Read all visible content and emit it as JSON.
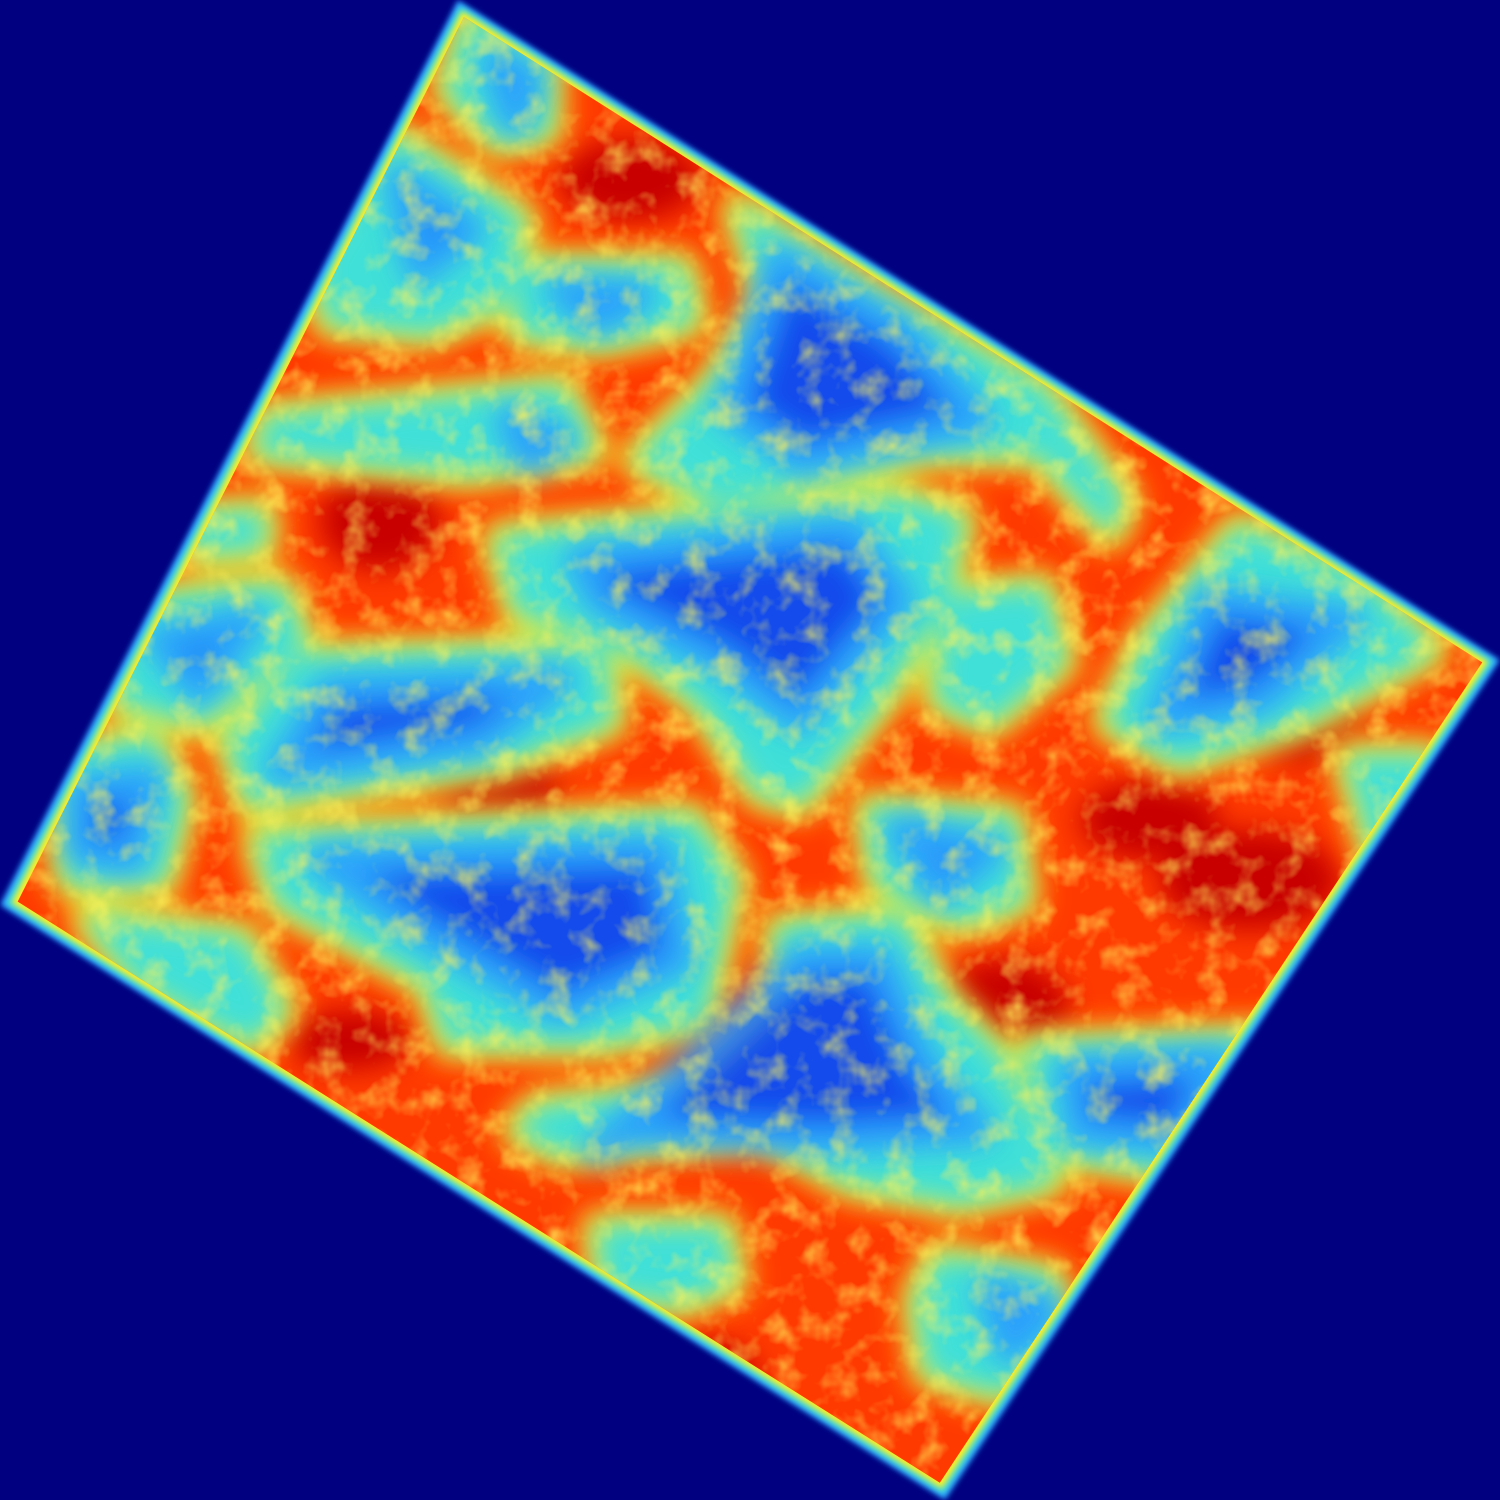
{
  "image": {
    "kind": "false-color heatmap of a rotated rectangular tile",
    "colormap": "jet",
    "background_color": "#000080",
    "palette": {
      "low": "#0a3cf0",
      "mid_low": "#2a9cff",
      "mid": "#3fe0d8",
      "mid_high": "#ffee22",
      "high": "#ff3a00",
      "peak": "#c80000"
    },
    "rotation_deg": 30
  }
}
